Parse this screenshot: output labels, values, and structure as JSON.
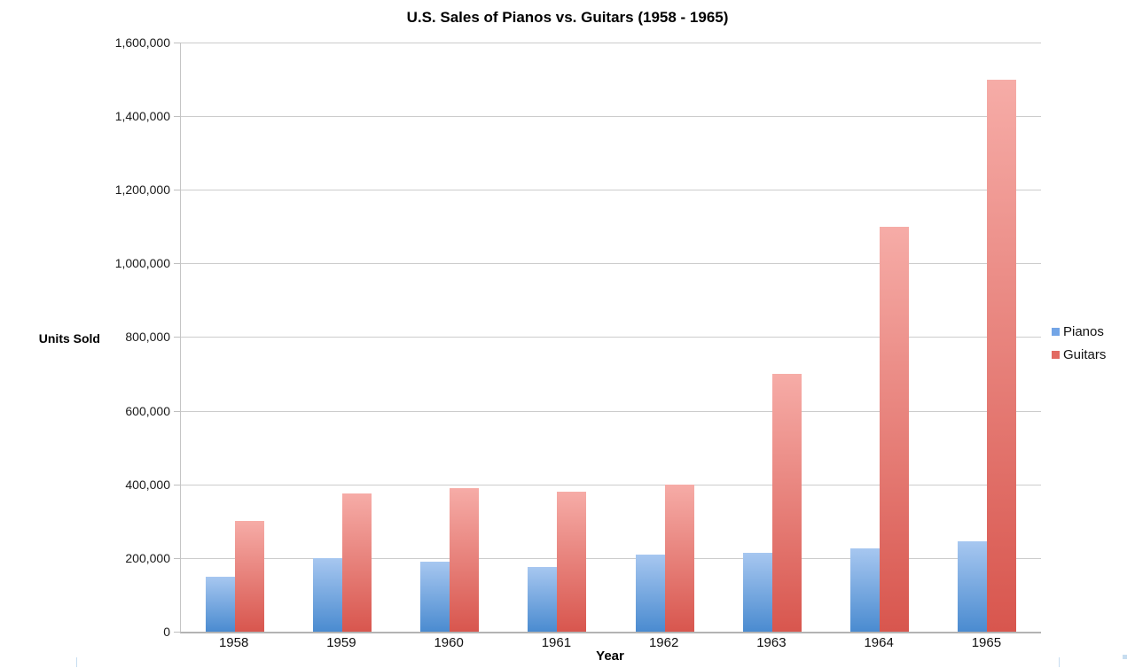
{
  "chart_data": {
    "type": "bar",
    "title": "U.S. Sales of Pianos vs. Guitars (1958 - 1965)",
    "xlabel": "Year",
    "ylabel": "Units Sold",
    "categories": [
      "1958",
      "1959",
      "1960",
      "1961",
      "1962",
      "1963",
      "1964",
      "1965"
    ],
    "series": [
      {
        "name": "Pianos",
        "values": [
          150000,
          200000,
          190000,
          175000,
          210000,
          215000,
          225000,
          245000
        ],
        "color": "#73a5e6",
        "gradient_top": "#a7c7f0",
        "gradient_bottom": "#4a8bd0"
      },
      {
        "name": "Guitars",
        "values": [
          300000,
          375000,
          390000,
          380000,
          400000,
          700000,
          1100000,
          1500000
        ],
        "color": "#e26a62",
        "gradient_top": "#f6aca7",
        "gradient_bottom": "#d8564e"
      }
    ],
    "ylim": [
      0,
      1600000
    ],
    "ytick_interval": 200000,
    "ytick_labels": [
      "0",
      "200,000",
      "400,000",
      "600,000",
      "800,000",
      "1,000,000",
      "1,200,000",
      "1,400,000",
      "1,600,000"
    ],
    "grid": true,
    "legend_position": "right"
  }
}
